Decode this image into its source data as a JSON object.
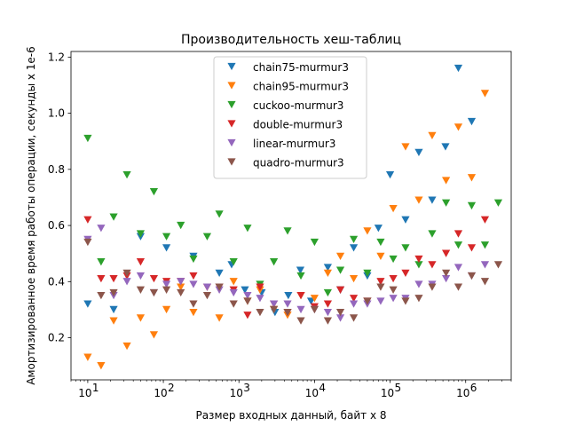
{
  "chart_data": {
    "type": "scatter",
    "title": "Производительность хеш-таблиц",
    "xlabel": "Размер входных данный, байт x 8",
    "ylabel": "Амортизированное время работы операции, секунды x 1e-6",
    "xscale": "log",
    "xlim": [
      6,
      4000000
    ],
    "ylim": [
      0.05,
      1.22
    ],
    "xticks": [
      10,
      100,
      1000,
      10000,
      100000,
      1000000
    ],
    "xtick_labels": [
      {
        "base": "10",
        "exp": "1"
      },
      {
        "base": "10",
        "exp": "2"
      },
      {
        "base": "10",
        "exp": "3"
      },
      {
        "base": "10",
        "exp": "4"
      },
      {
        "base": "10",
        "exp": "5"
      },
      {
        "base": "10",
        "exp": "6"
      }
    ],
    "yticks": [
      0.2,
      0.4,
      0.6,
      0.8,
      1.0,
      1.2
    ],
    "ytick_labels": [
      "0.2",
      "0.4",
      "0.6",
      "0.8",
      "1.0",
      "1.2"
    ],
    "marker": "triangle-down",
    "legend_position": "upper-center",
    "grid": false,
    "series": [
      {
        "name": "chain75-murmur3",
        "color": "#1f77b4",
        "points": [
          [
            10,
            0.32
          ],
          [
            22,
            0.3
          ],
          [
            50,
            0.56
          ],
          [
            110,
            0.52
          ],
          [
            250,
            0.49
          ],
          [
            550,
            0.43
          ],
          [
            800,
            0.46
          ],
          [
            1200,
            0.37
          ],
          [
            2000,
            0.36
          ],
          [
            3000,
            0.29
          ],
          [
            4500,
            0.35
          ],
          [
            6500,
            0.44
          ],
          [
            9000,
            0.33
          ],
          [
            15000,
            0.45
          ],
          [
            22000,
            0.37
          ],
          [
            33000,
            0.52
          ],
          [
            50000,
            0.42
          ],
          [
            70000,
            0.59
          ],
          [
            100000,
            0.78
          ],
          [
            160000,
            0.62
          ],
          [
            240000,
            0.86
          ],
          [
            360000,
            0.69
          ],
          [
            540000,
            0.88
          ],
          [
            800000,
            1.16
          ],
          [
            1200000,
            0.97
          ]
        ]
      },
      {
        "name": "chain95-murmur3",
        "color": "#ff7f0e",
        "points": [
          [
            10,
            0.13
          ],
          [
            15,
            0.1
          ],
          [
            22,
            0.26
          ],
          [
            33,
            0.17
          ],
          [
            50,
            0.27
          ],
          [
            75,
            0.21
          ],
          [
            110,
            0.3
          ],
          [
            170,
            0.38
          ],
          [
            250,
            0.29
          ],
          [
            380,
            0.38
          ],
          [
            550,
            0.27
          ],
          [
            850,
            0.4
          ],
          [
            1300,
            0.33
          ],
          [
            1900,
            0.37
          ],
          [
            2900,
            0.3
          ],
          [
            4400,
            0.28
          ],
          [
            6600,
            0.35
          ],
          [
            10000,
            0.34
          ],
          [
            15000,
            0.43
          ],
          [
            22000,
            0.49
          ],
          [
            33000,
            0.41
          ],
          [
            50000,
            0.58
          ],
          [
            75000,
            0.49
          ],
          [
            110000,
            0.66
          ],
          [
            160000,
            0.88
          ],
          [
            240000,
            0.69
          ],
          [
            360000,
            0.92
          ],
          [
            550000,
            0.76
          ],
          [
            800000,
            0.95
          ],
          [
            1200000,
            0.77
          ],
          [
            1800000,
            1.07
          ]
        ]
      },
      {
        "name": "cuckoo-murmur3",
        "color": "#2ca02c",
        "points": [
          [
            10,
            0.91
          ],
          [
            15,
            0.47
          ],
          [
            22,
            0.63
          ],
          [
            33,
            0.78
          ],
          [
            50,
            0.57
          ],
          [
            75,
            0.72
          ],
          [
            110,
            0.56
          ],
          [
            170,
            0.6
          ],
          [
            250,
            0.48
          ],
          [
            380,
            0.56
          ],
          [
            550,
            0.64
          ],
          [
            850,
            0.47
          ],
          [
            1300,
            0.59
          ],
          [
            1900,
            0.39
          ],
          [
            2900,
            0.47
          ],
          [
            4400,
            0.58
          ],
          [
            6600,
            0.42
          ],
          [
            10000,
            0.54
          ],
          [
            15000,
            0.36
          ],
          [
            22000,
            0.44
          ],
          [
            33000,
            0.55
          ],
          [
            50000,
            0.43
          ],
          [
            75000,
            0.54
          ],
          [
            110000,
            0.48
          ],
          [
            160000,
            0.52
          ],
          [
            240000,
            0.46
          ],
          [
            360000,
            0.57
          ],
          [
            550000,
            0.68
          ],
          [
            800000,
            0.53
          ],
          [
            1200000,
            0.67
          ],
          [
            1800000,
            0.53
          ],
          [
            2700000,
            0.68
          ]
        ]
      },
      {
        "name": "double-murmur3",
        "color": "#d62728",
        "points": [
          [
            10,
            0.62
          ],
          [
            15,
            0.41
          ],
          [
            22,
            0.41
          ],
          [
            33,
            0.42
          ],
          [
            50,
            0.47
          ],
          [
            75,
            0.41
          ],
          [
            110,
            0.4
          ],
          [
            170,
            0.4
          ],
          [
            250,
            0.42
          ],
          [
            380,
            0.38
          ],
          [
            550,
            0.38
          ],
          [
            850,
            0.37
          ],
          [
            1300,
            0.28
          ],
          [
            1900,
            0.38
          ],
          [
            2900,
            0.32
          ],
          [
            4400,
            0.29
          ],
          [
            6600,
            0.35
          ],
          [
            10000,
            0.31
          ],
          [
            15000,
            0.32
          ],
          [
            22000,
            0.37
          ],
          [
            33000,
            0.34
          ],
          [
            50000,
            0.33
          ],
          [
            75000,
            0.4
          ],
          [
            110000,
            0.41
          ],
          [
            160000,
            0.43
          ],
          [
            240000,
            0.48
          ],
          [
            360000,
            0.46
          ],
          [
            550000,
            0.5
          ],
          [
            800000,
            0.57
          ],
          [
            1200000,
            0.52
          ],
          [
            1800000,
            0.62
          ]
        ]
      },
      {
        "name": "linear-murmur3",
        "color": "#9467bd",
        "points": [
          [
            10,
            0.55
          ],
          [
            15,
            0.59
          ],
          [
            22,
            0.35
          ],
          [
            33,
            0.4
          ],
          [
            50,
            0.42
          ],
          [
            75,
            0.36
          ],
          [
            110,
            0.39
          ],
          [
            170,
            0.4
          ],
          [
            250,
            0.39
          ],
          [
            380,
            0.38
          ],
          [
            550,
            0.37
          ],
          [
            850,
            0.36
          ],
          [
            1300,
            0.35
          ],
          [
            1900,
            0.34
          ],
          [
            2900,
            0.32
          ],
          [
            4400,
            0.32
          ],
          [
            6600,
            0.3
          ],
          [
            10000,
            0.3
          ],
          [
            15000,
            0.29
          ],
          [
            22000,
            0.27
          ],
          [
            33000,
            0.32
          ],
          [
            50000,
            0.32
          ],
          [
            75000,
            0.33
          ],
          [
            110000,
            0.34
          ],
          [
            160000,
            0.34
          ],
          [
            240000,
            0.39
          ],
          [
            360000,
            0.39
          ],
          [
            550000,
            0.41
          ],
          [
            800000,
            0.45
          ],
          [
            1200000,
            0.42
          ],
          [
            1800000,
            0.46
          ]
        ]
      },
      {
        "name": "quadro-murmur3",
        "color": "#8c564b",
        "points": [
          [
            10,
            0.54
          ],
          [
            15,
            0.35
          ],
          [
            22,
            0.36
          ],
          [
            33,
            0.43
          ],
          [
            50,
            0.37
          ],
          [
            75,
            0.36
          ],
          [
            110,
            0.37
          ],
          [
            170,
            0.36
          ],
          [
            250,
            0.32
          ],
          [
            380,
            0.35
          ],
          [
            550,
            0.38
          ],
          [
            850,
            0.32
          ],
          [
            1300,
            0.33
          ],
          [
            1900,
            0.29
          ],
          [
            2900,
            0.3
          ],
          [
            4400,
            0.29
          ],
          [
            6600,
            0.26
          ],
          [
            10000,
            0.3
          ],
          [
            15000,
            0.26
          ],
          [
            22000,
            0.29
          ],
          [
            33000,
            0.27
          ],
          [
            50000,
            0.33
          ],
          [
            75000,
            0.38
          ],
          [
            110000,
            0.37
          ],
          [
            160000,
            0.33
          ],
          [
            240000,
            0.34
          ],
          [
            360000,
            0.38
          ],
          [
            550000,
            0.43
          ],
          [
            800000,
            0.38
          ],
          [
            1200000,
            0.42
          ],
          [
            1800000,
            0.4
          ],
          [
            2700000,
            0.46
          ]
        ]
      }
    ]
  }
}
